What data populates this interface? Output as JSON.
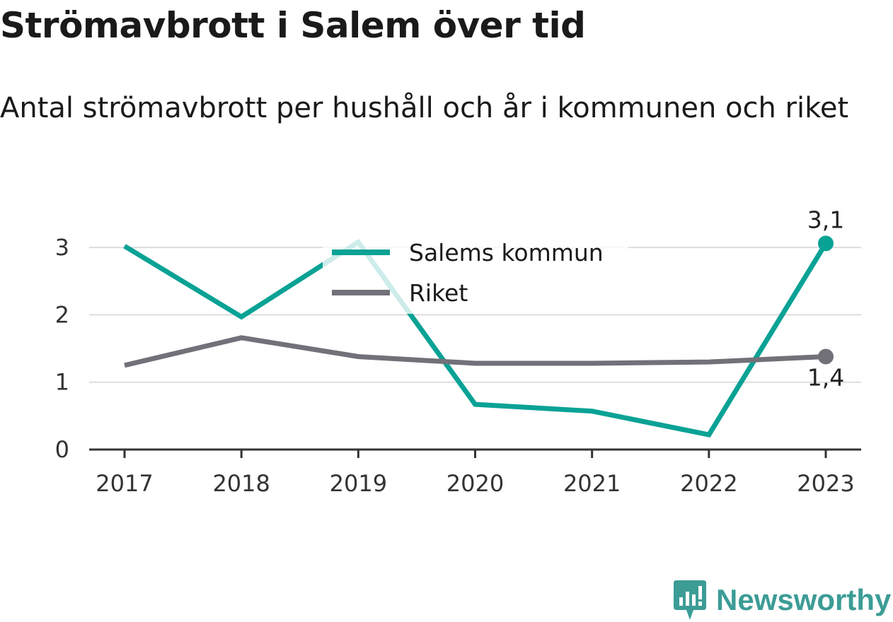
{
  "title": "Strömavbrott i Salem över tid",
  "subtitle": "Antal strömavbrott per hushåll och år i kommunen och riket",
  "brand": {
    "name": "Newsworthy",
    "icon": "newsworthy-logo-icon",
    "color": "#3c9c96"
  },
  "chart_data": {
    "type": "line",
    "x": [
      "2017",
      "2018",
      "2019",
      "2020",
      "2021",
      "2022",
      "2023"
    ],
    "yticks": [
      "0",
      "1",
      "2",
      "3"
    ],
    "ylim": [
      0,
      3.3
    ],
    "grid": true,
    "legend": "top-center",
    "series": [
      {
        "name": "Salems kommun",
        "color": "#09a295",
        "values": [
          3.02,
          1.97,
          3.08,
          0.67,
          0.57,
          0.22,
          3.06
        ],
        "end_label": "3,1"
      },
      {
        "name": "Riket",
        "color": "#727078",
        "values": [
          1.25,
          1.66,
          1.38,
          1.28,
          1.28,
          1.3,
          1.38
        ],
        "end_label": "1,4"
      }
    ]
  }
}
